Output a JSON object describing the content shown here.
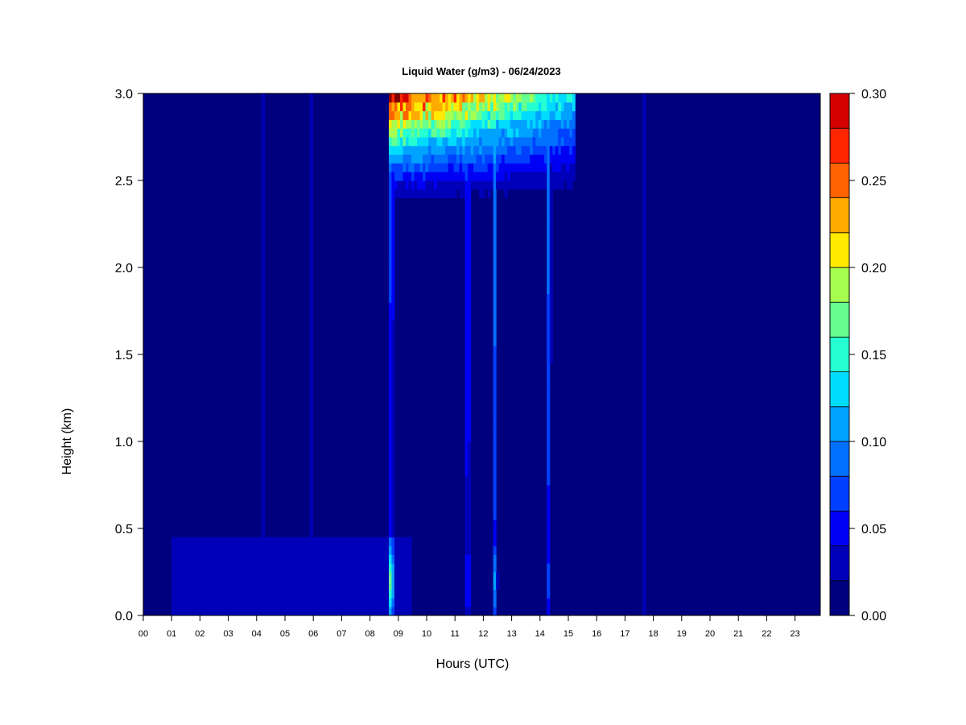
{
  "chart_data": {
    "type": "heatmap",
    "title": "Liquid Water (g/m3) - 06/24/2023",
    "xlabel": "Hours (UTC)",
    "ylabel": "Height (km)",
    "xlim": [
      0,
      23.9
    ],
    "ylim": [
      0.0,
      3.0
    ],
    "x_ticks": [
      "00",
      "01",
      "02",
      "03",
      "04",
      "05",
      "06",
      "07",
      "08",
      "09",
      "10",
      "11",
      "12",
      "13",
      "14",
      "15",
      "16",
      "17",
      "18",
      "19",
      "20",
      "21",
      "22",
      "23"
    ],
    "y_ticks": [
      "0.0",
      "0.5",
      "1.0",
      "1.5",
      "2.0",
      "2.5",
      "3.0"
    ],
    "colorbar": {
      "range": [
        0.0,
        0.3
      ],
      "tick_labels": [
        "0.00",
        "0.05",
        "0.10",
        "0.15",
        "0.20",
        "0.25",
        "0.30"
      ],
      "levels": [
        0.0,
        0.02,
        0.04,
        0.06,
        0.08,
        0.1,
        0.12,
        0.14,
        0.16,
        0.18,
        0.2,
        0.22,
        0.24,
        0.26,
        0.28,
        0.3
      ],
      "colors": [
        "#00007f",
        "#0000b8",
        "#0000f5",
        "#0040ff",
        "#0070ff",
        "#00a2ff",
        "#00dcff",
        "#25ffd2",
        "#66ff90",
        "#a6ff50",
        "#ffea00",
        "#ffaa00",
        "#ff6200",
        "#ff2600",
        "#d40000",
        "#800000"
      ]
    },
    "background_value": 0.0,
    "features": [
      {
        "kind": "upper_cloud",
        "x_start": 8.7,
        "x_end": 15.2,
        "base_km": 2.3,
        "top_km": 3.0,
        "peak_value": 0.3
      },
      {
        "kind": "spike",
        "x": 8.75,
        "height_top_km": 3.0,
        "value_near_surface": 0.26
      },
      {
        "kind": "spike",
        "x": 11.45,
        "height_top_km": 3.0,
        "value_near_surface": 0.1
      },
      {
        "kind": "spike",
        "x": 12.4,
        "height_top_km": 3.0,
        "value_near_surface": 0.12
      },
      {
        "kind": "spike",
        "x": 14.3,
        "height_top_km": 3.0,
        "value_near_surface": 0.08
      },
      {
        "kind": "low_layer",
        "x_start": 1.0,
        "x_end": 9.5,
        "base_km": 0.0,
        "top_km": 0.45,
        "value": 0.03
      },
      {
        "kind": "faint_streak",
        "x": 4.25,
        "height_top_km": 3.0,
        "value": 0.03
      },
      {
        "kind": "faint_streak",
        "x": 5.95,
        "height_top_km": 3.0,
        "value": 0.03
      },
      {
        "kind": "faint_streak",
        "x": 17.65,
        "height_top_km": 3.0,
        "value": 0.02
      }
    ]
  }
}
